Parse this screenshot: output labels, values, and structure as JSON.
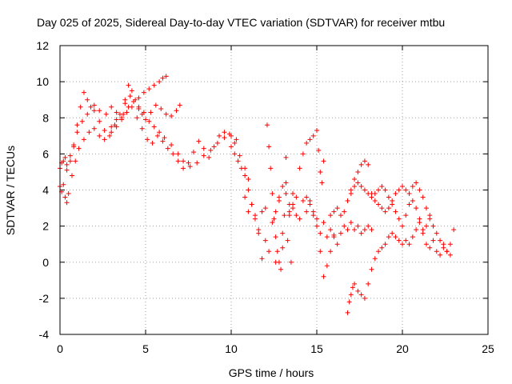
{
  "chart_data": {
    "type": "scatter",
    "title": "Day 025 of 2025, Sidereal Day-to-day VTEC variation (SDTVAR) for receiver mtbu",
    "xlabel": "GPS time / hours",
    "ylabel": "SDTVAR / TECUs",
    "xlim": [
      0,
      25
    ],
    "ylim": [
      -4,
      12
    ],
    "xticks": [
      0,
      5,
      10,
      15,
      20,
      25
    ],
    "yticks": [
      -4,
      -2,
      0,
      2,
      4,
      6,
      8,
      10,
      12
    ],
    "grid": true,
    "marker": "plus",
    "color": "#ff0000",
    "series": [
      {
        "x": [
          0.0,
          0.1,
          0.3,
          0.4,
          0.6,
          0.8,
          1.0,
          1.3,
          1.6,
          2.0,
          2.3,
          2.7,
          3.0,
          3.3,
          3.6,
          3.8,
          4.1,
          4.3,
          4.6,
          4.9,
          5.2,
          5.5,
          5.8,
          6.1,
          6.5,
          6.9,
          7.2,
          7.6,
          8.0,
          8.4,
          8.8,
          9.2,
          9.6,
          10.0,
          10.3
        ],
        "values": [
          5.2,
          5.5,
          5.8,
          5.4,
          5.9,
          6.5,
          7.2,
          7.8,
          8.2,
          8.7,
          8.4,
          8.2,
          8.6,
          8.3,
          8.0,
          8.8,
          9.2,
          8.9,
          8.5,
          8.3,
          7.8,
          7.5,
          7.2,
          6.9,
          6.5,
          6.0,
          5.6,
          5.3,
          5.5,
          5.9,
          6.2,
          6.6,
          6.9,
          7.0,
          6.8
        ]
      },
      {
        "x": [
          0.0,
          0.1,
          0.2,
          0.3,
          0.4,
          0.5,
          0.7,
          0.9,
          1.1,
          1.4,
          1.7,
          2.0,
          2.3,
          2.6,
          3.0,
          3.3,
          3.7,
          4.0,
          4.3,
          4.6,
          4.9,
          5.2,
          5.5,
          5.8,
          6.0,
          6.2
        ],
        "values": [
          4.2,
          3.9,
          4.3,
          3.6,
          3.3,
          3.8,
          4.8,
          5.6,
          6.3,
          6.8,
          7.2,
          7.4,
          7.0,
          6.8,
          7.5,
          7.9,
          8.2,
          8.6,
          8.9,
          9.1,
          9.4,
          9.6,
          9.8,
          10.0,
          10.2,
          10.3
        ]
      },
      {
        "x": [
          0.2,
          0.4,
          0.6,
          0.8,
          1.0,
          1.2,
          1.4,
          1.6,
          1.8,
          2.0,
          2.3,
          2.6,
          2.9,
          3.2,
          3.5,
          3.8,
          4.0,
          4.2,
          4.4,
          4.6,
          4.8,
          5.0,
          5.3,
          5.6,
          5.9,
          6.2,
          6.5,
          6.8,
          7.0
        ],
        "values": [
          5.6,
          5.1,
          5.6,
          6.4,
          7.6,
          8.6,
          9.4,
          9.0,
          8.6,
          8.4,
          7.8,
          7.3,
          7.0,
          7.6,
          8.2,
          9.0,
          9.8,
          9.5,
          9.0,
          8.6,
          8.2,
          7.9,
          8.3,
          8.7,
          8.5,
          8.2,
          8.1,
          8.4,
          8.7
        ]
      },
      {
        "x": [
          3.0,
          3.3,
          3.6,
          3.9,
          4.2,
          4.5,
          4.8,
          5.1,
          5.4,
          5.7,
          6.0,
          6.3,
          6.6,
          6.9,
          7.2,
          7.5,
          7.8,
          8.1,
          8.4,
          8.7,
          9.0,
          9.3,
          9.6,
          9.9,
          10.2,
          10.5,
          10.8,
          11.0
        ],
        "values": [
          7.2,
          7.5,
          7.9,
          8.3,
          8.6,
          8.0,
          7.4,
          6.8,
          6.6,
          7.0,
          6.7,
          6.3,
          6.0,
          5.6,
          5.2,
          5.5,
          6.1,
          6.7,
          6.3,
          5.8,
          6.4,
          7.0,
          7.2,
          7.1,
          6.6,
          5.9,
          5.2,
          4.6
        ]
      },
      {
        "x": [
          10.0,
          10.2,
          10.4,
          10.6,
          10.8,
          11.0,
          11.2,
          11.4,
          11.6,
          11.8,
          12.0,
          12.2,
          12.4,
          12.6,
          12.8,
          13.0,
          13.2,
          13.4,
          13.6,
          13.8,
          14.0,
          14.2,
          14.4,
          14.6,
          14.8,
          15.0,
          15.2,
          15.4,
          15.6,
          15.8,
          16.0
        ],
        "values": [
          6.4,
          6.0,
          5.6,
          5.2,
          4.8,
          4.0,
          3.2,
          2.4,
          1.8,
          2.8,
          1.2,
          0.6,
          2.2,
          0.0,
          3.4,
          1.6,
          3.8,
          2.6,
          3.2,
          3.6,
          2.4,
          3.4,
          2.8,
          3.2,
          2.6,
          2.0,
          1.6,
          2.2,
          1.4,
          1.8,
          1.5
        ]
      },
      {
        "x": [
          10.8,
          11.0,
          11.2,
          11.4,
          11.6,
          11.8,
          12.0,
          12.1,
          12.2,
          12.3,
          12.4,
          12.5,
          12.6,
          12.7,
          12.8,
          12.9,
          13.0,
          13.1,
          13.2,
          13.3,
          13.4,
          13.5,
          13.6
        ],
        "values": [
          3.6,
          2.8,
          3.2,
          2.6,
          1.6,
          0.2,
          3.0,
          7.6,
          6.4,
          5.2,
          3.8,
          2.4,
          1.4,
          0.6,
          0.0,
          -0.4,
          0.8,
          2.6,
          4.4,
          1.2,
          2.8,
          0.0,
          3.0
        ]
      },
      {
        "x": [
          12.6,
          12.8,
          13.0,
          13.2,
          13.4,
          13.6,
          13.8,
          14.0,
          14.2,
          14.4,
          14.6,
          14.8,
          15.0,
          15.1,
          15.2,
          15.3,
          15.4
        ],
        "values": [
          2.8,
          3.6,
          4.2,
          5.8,
          3.2,
          3.8,
          2.6,
          5.2,
          6.0,
          6.6,
          6.8,
          7.0,
          7.3,
          6.2,
          5.0,
          4.4,
          5.6
        ]
      },
      {
        "x": [
          14.4,
          14.6,
          14.8,
          15.0,
          15.2,
          15.4,
          15.6,
          15.8,
          16.0,
          16.2,
          16.4,
          16.6,
          16.8,
          17.0,
          17.2,
          17.4,
          17.6,
          17.8,
          18.0,
          18.2
        ],
        "values": [
          3.6,
          3.4,
          2.8,
          2.4,
          0.6,
          -0.8,
          -0.2,
          0.6,
          1.4,
          1.0,
          1.6,
          2.0,
          1.8,
          2.2,
          1.8,
          2.0,
          1.6,
          1.8,
          2.0,
          1.8
        ]
      },
      {
        "x": [
          15.8,
          16.0,
          16.2,
          16.4,
          16.6,
          16.8,
          17.0,
          17.2,
          17.4,
          17.6,
          17.8,
          18.0,
          18.2,
          18.4,
          18.6,
          18.8,
          19.0,
          19.2,
          19.4,
          19.6,
          19.8,
          20.0,
          20.2,
          20.4,
          20.6,
          20.8,
          21.0,
          21.2,
          21.4,
          21.6
        ],
        "values": [
          2.6,
          2.8,
          3.0,
          2.6,
          2.8,
          3.4,
          4.0,
          4.6,
          5.0,
          5.4,
          5.6,
          5.4,
          3.8,
          3.4,
          3.2,
          3.0,
          2.8,
          3.0,
          3.4,
          3.8,
          4.0,
          4.2,
          4.0,
          3.8,
          4.2,
          4.4,
          4.0,
          3.6,
          3.0,
          2.6
        ]
      },
      {
        "x": [
          16.8,
          17.0,
          17.2,
          17.4,
          17.6,
          17.8,
          18.0,
          18.2,
          18.4,
          18.6,
          18.8,
          19.0,
          19.2,
          19.4,
          19.6,
          19.8,
          20.0,
          20.2,
          20.4,
          20.6,
          20.8,
          21.0,
          21.2,
          21.4,
          21.6,
          21.8,
          22.0,
          22.2,
          22.4,
          22.6,
          22.8
        ],
        "values": [
          3.4,
          3.8,
          4.2,
          4.4,
          4.2,
          4.0,
          3.8,
          3.6,
          3.8,
          4.0,
          4.2,
          4.0,
          3.6,
          3.2,
          2.8,
          2.4,
          2.0,
          2.6,
          3.2,
          3.4,
          3.0,
          2.4,
          1.6,
          1.0,
          0.8,
          1.2,
          0.6,
          0.4,
          1.0,
          0.6,
          0.4
        ]
      },
      {
        "x": [
          16.8,
          16.9,
          17.0,
          17.1,
          17.2,
          17.4,
          17.6,
          17.8,
          18.0,
          18.2,
          18.4,
          18.6,
          18.8,
          19.0,
          19.2,
          19.4,
          19.6,
          19.8,
          20.0,
          20.2,
          20.4,
          20.6,
          20.8,
          21.0,
          21.2,
          21.4,
          21.6,
          21.8,
          22.0,
          22.2,
          22.4,
          22.6,
          22.8,
          23.0
        ],
        "values": [
          -2.8,
          -2.2,
          -1.8,
          -1.4,
          -1.2,
          -1.6,
          -1.8,
          -2.0,
          -1.2,
          -0.4,
          0.2,
          0.6,
          0.8,
          1.0,
          1.4,
          1.6,
          1.4,
          1.2,
          1.0,
          1.2,
          1.0,
          1.4,
          1.8,
          2.2,
          1.8,
          2.0,
          2.4,
          2.0,
          1.6,
          1.2,
          0.8,
          0.6,
          1.0,
          1.8
        ]
      }
    ]
  }
}
